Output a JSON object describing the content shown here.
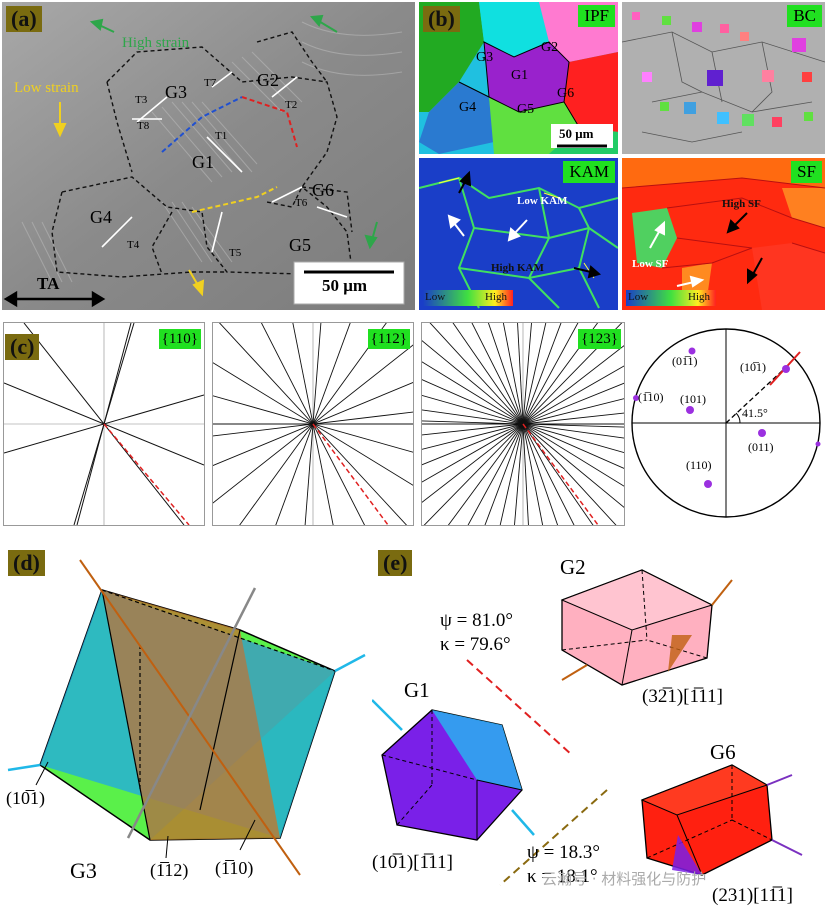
{
  "panel_a": {
    "label": "(a)",
    "annotations": {
      "high_strain": "High strain",
      "low_strain": "Low strain"
    },
    "grains": [
      "G1",
      "G2",
      "G3",
      "G4",
      "G5",
      "G6"
    ],
    "traces": [
      "T1",
      "T2",
      "T3",
      "T4",
      "T5",
      "T6",
      "T7",
      "T8"
    ],
    "scale": "50 μm",
    "axis": "TA",
    "colors": {
      "high": "#2ea64a",
      "low": "#f0d020"
    }
  },
  "panel_b": {
    "label": "(b)",
    "tiles": {
      "ipf": {
        "tag": "IPF",
        "grains": [
          "G1",
          "G2",
          "G3",
          "G4",
          "G5",
          "G6"
        ],
        "scale": "50 μm"
      },
      "bc": {
        "tag": "BC"
      },
      "kam": {
        "tag": "KAM",
        "low_note": "Low KAM",
        "high_note": "High KAM",
        "bar_low": "Low",
        "bar_high": "High"
      },
      "sf": {
        "tag": "SF",
        "high_note": "High SF",
        "low_note": "Low SF",
        "bar_low": "Low",
        "bar_high": "High"
      }
    }
  },
  "panel_c": {
    "label": "(c)",
    "tags": [
      "{110}",
      "{112}",
      "{123}"
    ],
    "pole_labels": {
      "p01m1": "(01̅1)",
      "p10m1": "(10̅1)",
      "p1m10": "(1̅10)",
      "p101": "(101)",
      "p011": "(011)",
      "p110": "(110)"
    },
    "angle": "41.5°"
  },
  "panel_d": {
    "label": "(d)",
    "grain": "G3",
    "planes": {
      "a": "(10̅1)",
      "b": "(1̅12)",
      "c": "(1̅10)"
    }
  },
  "panel_e": {
    "label": "(e)",
    "grains": {
      "g1": "G1",
      "g2": "G2",
      "g6": "G6"
    },
    "top": {
      "psi": "ψ = 81.0°",
      "kappa": "κ = 79.6°"
    },
    "bottom": {
      "psi": "ψ = 18.3°",
      "kappa": "κ = 18.1°"
    },
    "systems": {
      "g1": "(10̅1)[1̅11]",
      "g2": "(32̅1)[1̅11]",
      "g6": "(231)[11̅1]"
    },
    "watermark": "云瀚号 · 材料强化与防护"
  }
}
